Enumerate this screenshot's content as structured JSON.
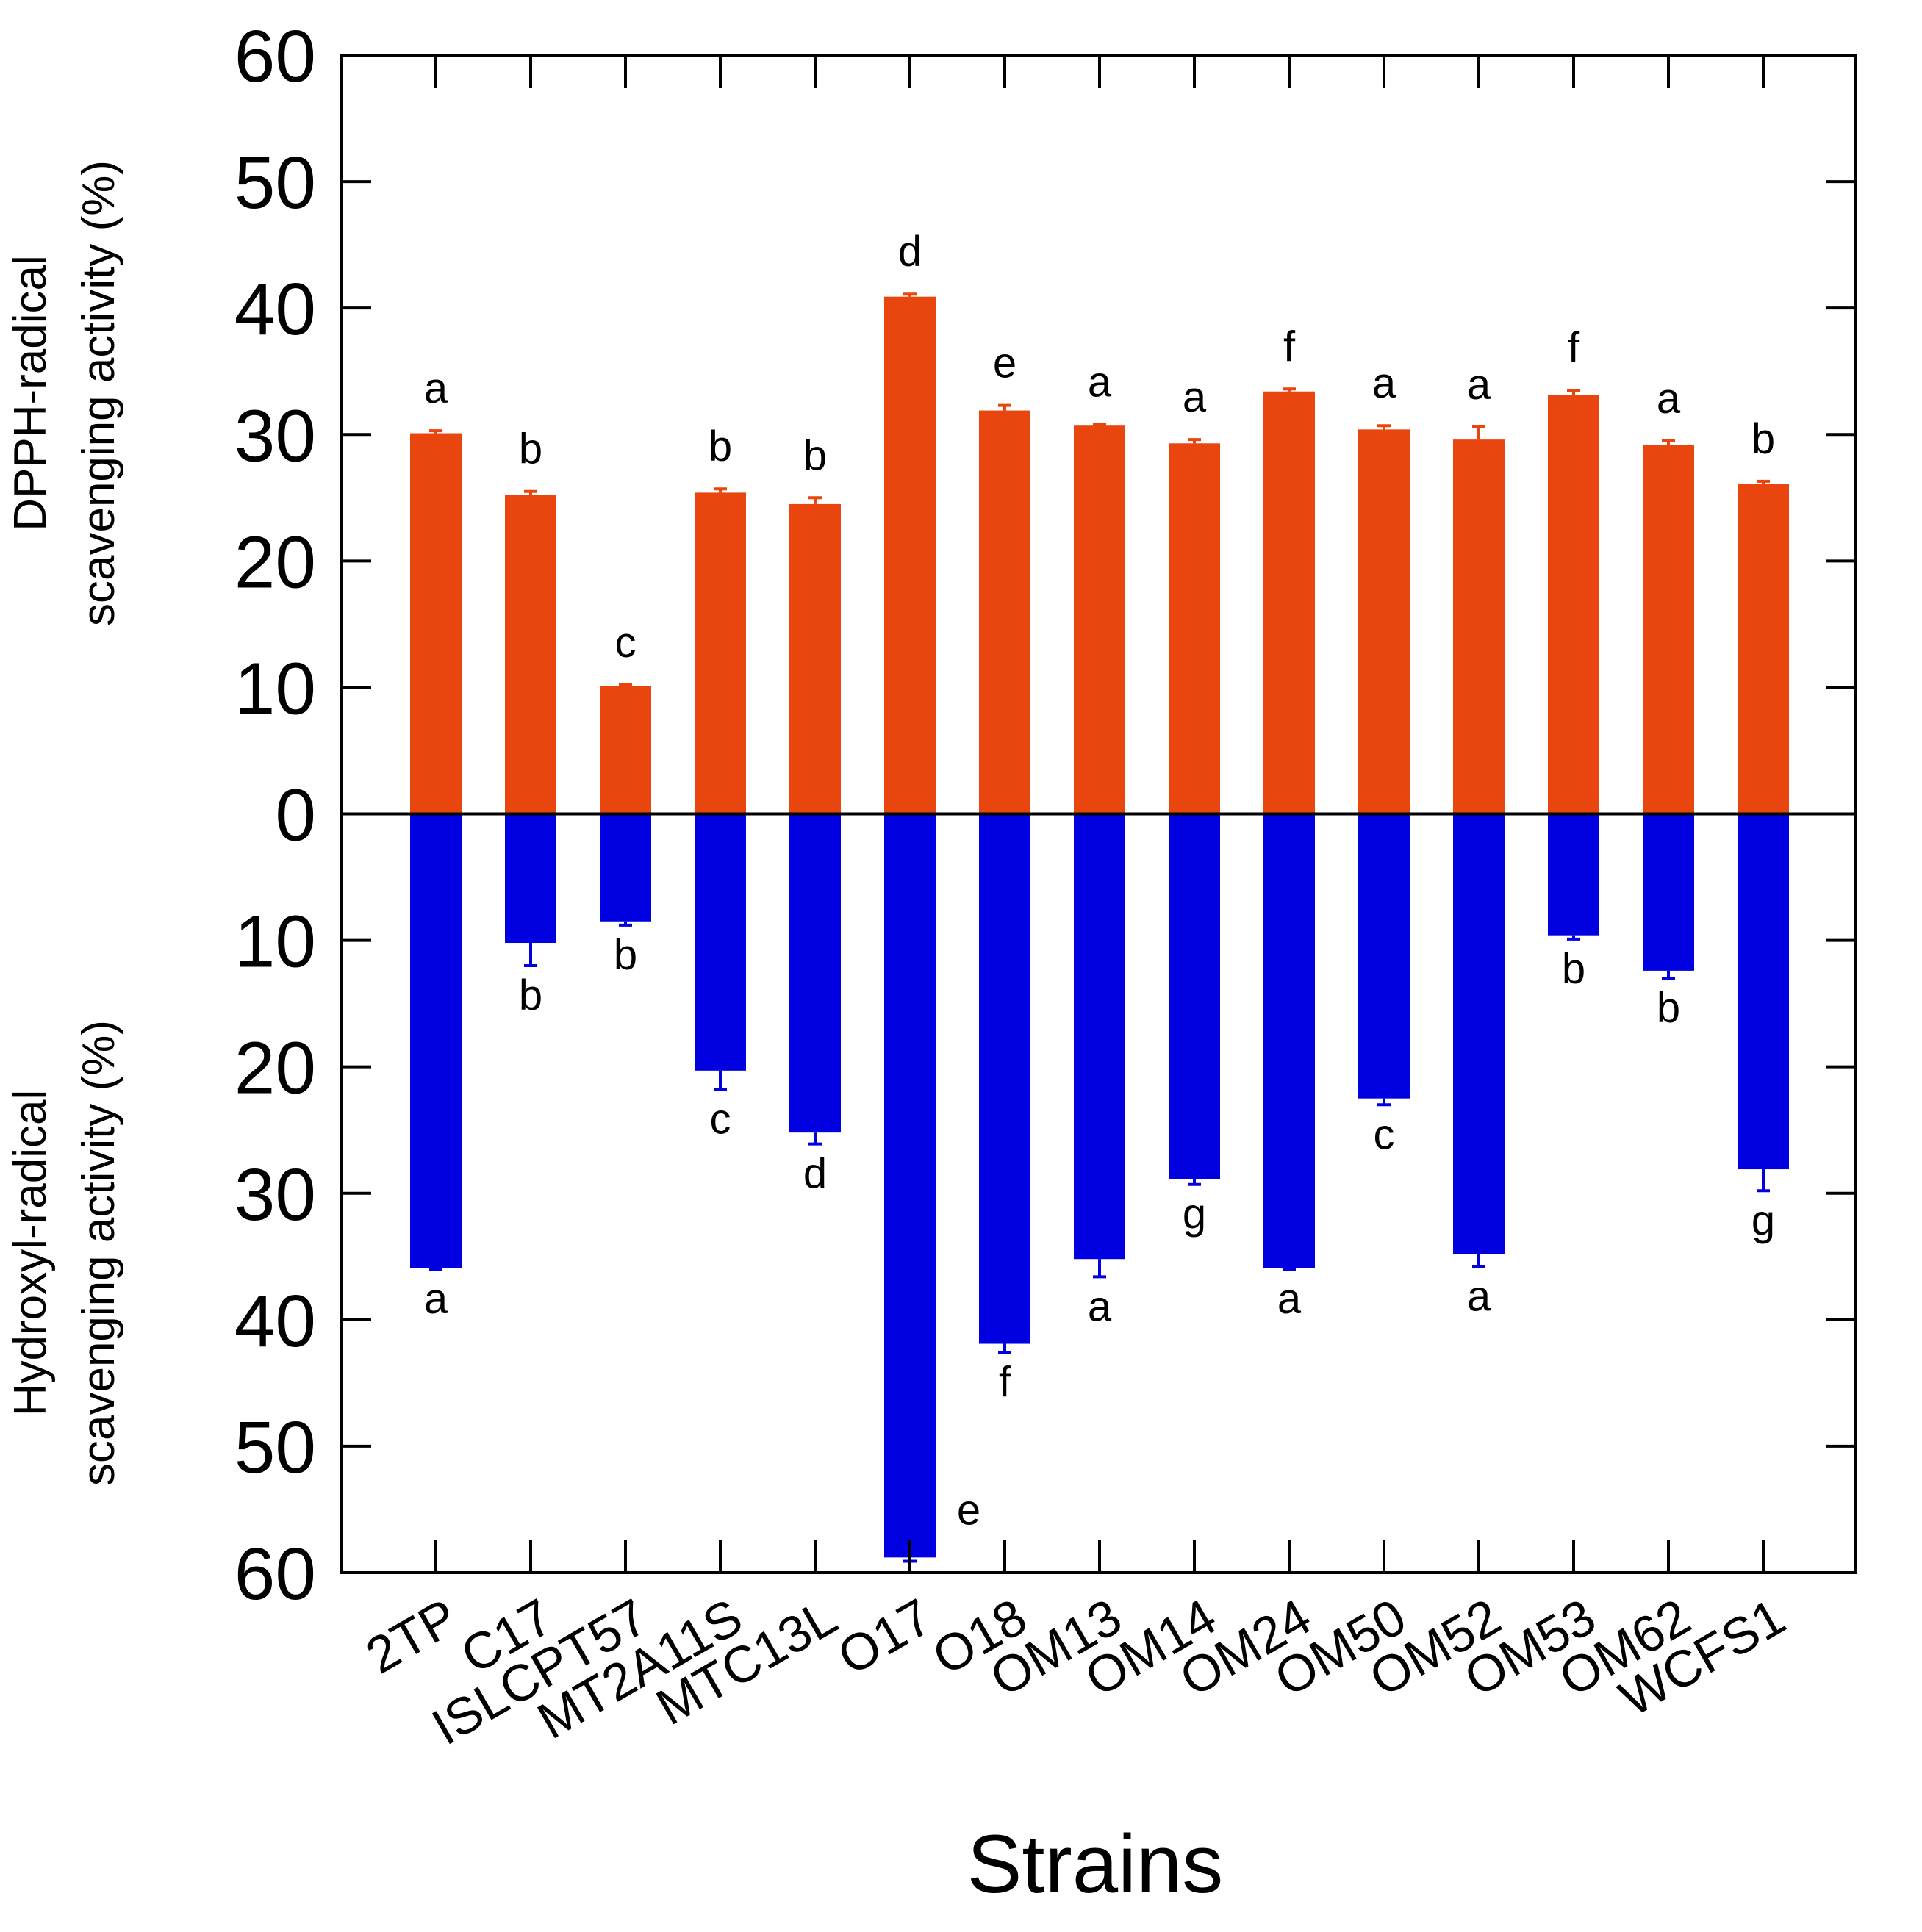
{
  "chart_data": {
    "type": "bar",
    "xlabel": "Strains",
    "ylabel_top": [
      "DPPH-radical",
      "scavenging activity (%)"
    ],
    "ylabel_bottom": [
      "Hydroxyl-radical",
      "scavenging activity (%)"
    ],
    "yticks_top": [
      "0",
      "10",
      "20",
      "30",
      "40",
      "50",
      "60"
    ],
    "yticks_bottom": [
      "10",
      "20",
      "30",
      "40",
      "50",
      "60"
    ],
    "ylim": [
      -60,
      60
    ],
    "categories": [
      "2TP",
      "C17",
      "ISLCPT57",
      "MT2A11S",
      "MTC13L",
      "O17",
      "O18",
      "OM13",
      "OM14",
      "OM24",
      "OM50",
      "OM52",
      "OM53",
      "OM62",
      "WCFS1"
    ],
    "series": [
      {
        "name": "DPPH-radical scavenging activity (%)",
        "color": "#E8450F",
        "values": [
          30.1,
          25.2,
          10.1,
          25.4,
          24.5,
          40.9,
          31.9,
          30.7,
          29.3,
          33.4,
          30.4,
          29.6,
          33.1,
          29.2,
          26.1
        ],
        "errors": [
          0.2,
          0.3,
          0.1,
          0.3,
          0.5,
          0.2,
          0.4,
          0.1,
          0.3,
          0.2,
          0.3,
          1.0,
          0.4,
          0.3,
          0.2
        ],
        "significance": [
          "a",
          "b",
          "c",
          "b",
          "b",
          "d",
          "e",
          "a",
          "a",
          "f",
          "a",
          "a",
          "f",
          "a",
          "b"
        ]
      },
      {
        "name": "Hydroxyl-radical scavenging activity (%)",
        "color": "#0000E0",
        "values": [
          35.9,
          10.2,
          8.5,
          20.3,
          25.2,
          58.8,
          41.9,
          35.2,
          28.9,
          35.9,
          22.5,
          34.8,
          9.6,
          12.4,
          28.1
        ],
        "errors": [
          0.1,
          1.8,
          0.3,
          1.5,
          0.9,
          0.3,
          0.7,
          1.4,
          0.4,
          0.1,
          0.5,
          1.0,
          0.3,
          0.6,
          1.7
        ],
        "significance": [
          "a",
          "b",
          "b",
          "c",
          "d",
          "e",
          "f",
          "a",
          "g",
          "a",
          "c",
          "a",
          "b",
          "b",
          "g"
        ]
      }
    ]
  }
}
